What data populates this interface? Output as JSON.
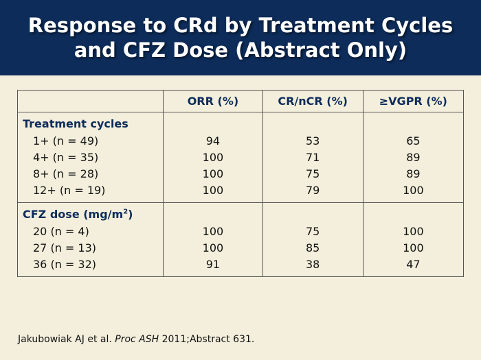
{
  "title": {
    "line1": "Response to CRd by Treatment Cycles",
    "line2": "and CFZ Dose (Abstract Only)"
  },
  "table": {
    "headers": [
      "",
      "ORR (%)",
      "CR/nCR (%)",
      "≥VGPR (%)"
    ],
    "groups": [
      {
        "heading": "Treatment cycles",
        "rows": [
          {
            "label": "1+ (n = 49)",
            "values": [
              "94",
              "53",
              "65"
            ]
          },
          {
            "label": "4+ (n = 35)",
            "values": [
              "100",
              "71",
              "89"
            ]
          },
          {
            "label": "8+ (n = 28)",
            "values": [
              "100",
              "75",
              "89"
            ]
          },
          {
            "label": "12+ (n = 19)",
            "values": [
              "100",
              "79",
              "100"
            ]
          }
        ]
      },
      {
        "heading": "CFZ dose (mg/m",
        "heading_sup": "2",
        "heading_end": ")",
        "rows": [
          {
            "label": "20 (n = 4)",
            "values": [
              "100",
              "75",
              "100"
            ]
          },
          {
            "label": "27 (n = 13)",
            "values": [
              "100",
              "85",
              "100"
            ]
          },
          {
            "label": "36 (n = 32)",
            "values": [
              "91",
              "38",
              "47"
            ]
          }
        ]
      }
    ]
  },
  "citation": {
    "authors": "Jakubowiak AJ et al. ",
    "journal": "Proc ASH",
    "rest": " 2011;Abstract 631."
  },
  "colors": {
    "title_bg": "#0d2c5a",
    "page_bg": "#f3efdc",
    "header_text": "#0d2c5a"
  }
}
